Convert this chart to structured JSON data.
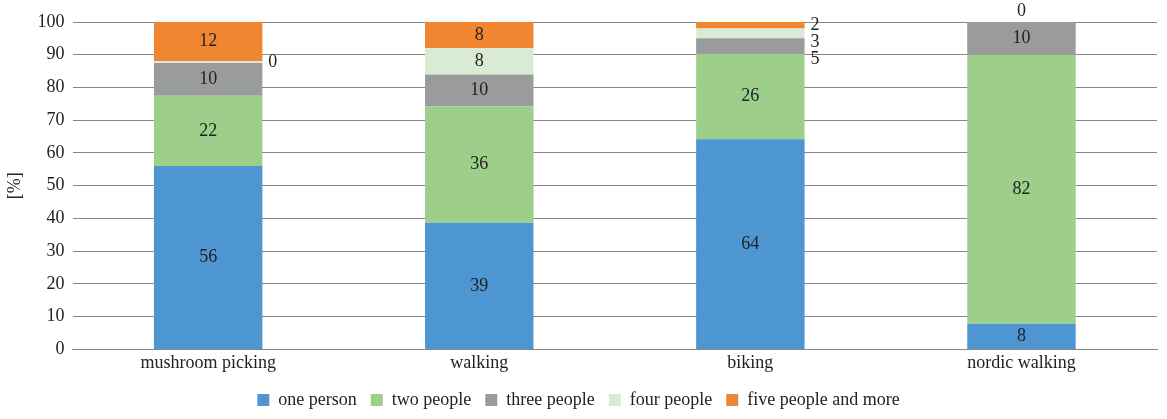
{
  "chart_data": {
    "type": "bar",
    "stacked": true,
    "ylabel": "[%]",
    "categories": [
      "mushroom picking",
      "walking",
      "biking",
      "nordic walking"
    ],
    "series": [
      {
        "name": "one person",
        "color": "#4e96d2",
        "values": [
          56,
          38.7,
          64.2,
          7.8
        ],
        "value_labels": [
          "56",
          "39",
          "64",
          "8"
        ]
      },
      {
        "name": "two people",
        "color": "#9dcf8a",
        "values": [
          21.5,
          35.6,
          26,
          82.2
        ],
        "value_labels": [
          "22",
          "36",
          "26",
          "82"
        ]
      },
      {
        "name": "three people",
        "color": "#999b9c",
        "values": [
          10,
          9.7,
          4.8,
          10
        ],
        "value_labels": [
          "10",
          "10",
          "5",
          "10"
        ]
      },
      {
        "name": "four people",
        "color": "#d9ecd3",
        "values": [
          0.5,
          8,
          3,
          0
        ],
        "value_labels": [
          "0",
          "8",
          "3",
          "0"
        ]
      },
      {
        "name": "five people and more",
        "color": "#f08632",
        "values": [
          12,
          8,
          2,
          null
        ],
        "value_labels": [
          "12",
          "8",
          "2",
          null
        ]
      }
    ],
    "ylim": [
      0,
      100
    ],
    "yticks": [
      0,
      10,
      20,
      30,
      40,
      50,
      60,
      70,
      80,
      90,
      100
    ],
    "grid": "y",
    "legend": "bottom"
  }
}
